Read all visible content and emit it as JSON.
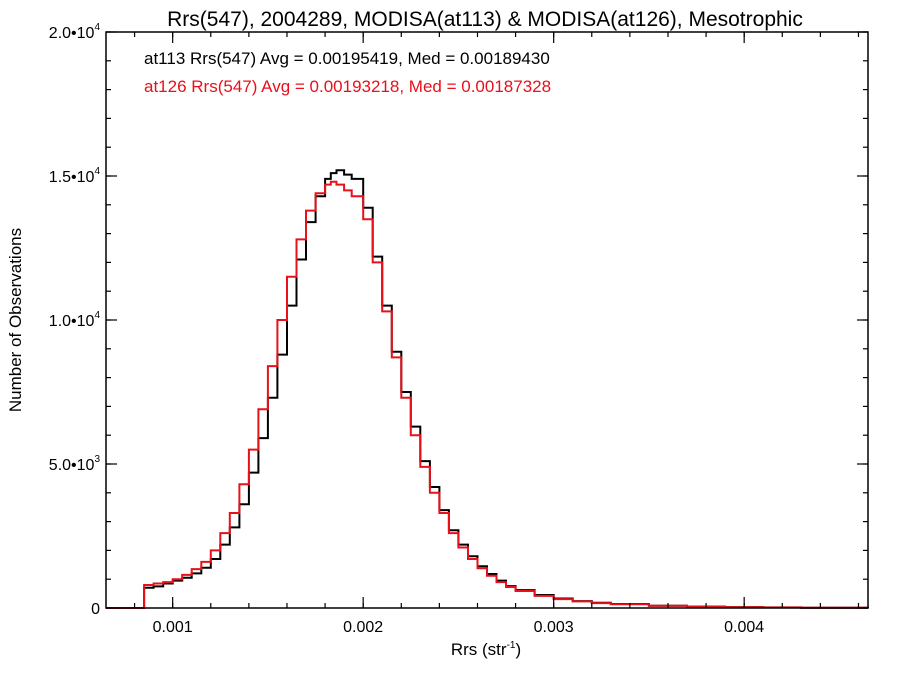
{
  "chart_data": {
    "type": "line",
    "title": "Rrs(547), 2004289, MODISA(at113) & MODISA(at126), Mesotrophic",
    "xlabel": {
      "base": "Rrs (str",
      "sup": "-1",
      "tail": ")"
    },
    "ylabel": "Number of Observations",
    "xlim": [
      0.00065,
      0.00465
    ],
    "ylim": [
      0,
      20000
    ],
    "xticks": [
      {
        "value": 0.001,
        "label": "0.001"
      },
      {
        "value": 0.002,
        "label": "0.002"
      },
      {
        "value": 0.003,
        "label": "0.003"
      },
      {
        "value": 0.004,
        "label": "0.004"
      }
    ],
    "yticks": [
      {
        "value": 0,
        "label": "0",
        "sup": ""
      },
      {
        "value": 5000,
        "label": "5.0•10",
        "sup": "3"
      },
      {
        "value": 10000,
        "label": "1.0•10",
        "sup": "4"
      },
      {
        "value": 15000,
        "label": "1.5•10",
        "sup": "4"
      },
      {
        "value": 20000,
        "label": "2.0•10",
        "sup": "4"
      }
    ],
    "x_minor_step": 0.0002,
    "y_minor_step": 1000,
    "grid": false,
    "legend_position": "top-left",
    "series": [
      {
        "name": "at113",
        "legend_text": "at113 Rrs(547) Avg = 0.00195419, Med = 0.00189430",
        "color": "#000000",
        "x": [
          0.00065,
          0.0008,
          0.00085,
          0.0009,
          0.00095,
          0.001,
          0.00105,
          0.0011,
          0.00115,
          0.0012,
          0.00125,
          0.0013,
          0.00135,
          0.0014,
          0.00145,
          0.0015,
          0.00155,
          0.0016,
          0.00165,
          0.0017,
          0.00175,
          0.0018,
          0.00183,
          0.00186,
          0.0019,
          0.00194,
          0.002,
          0.00205,
          0.0021,
          0.00215,
          0.0022,
          0.00225,
          0.0023,
          0.00235,
          0.0024,
          0.00245,
          0.0025,
          0.00255,
          0.0026,
          0.00265,
          0.0027,
          0.00275,
          0.0028,
          0.0029,
          0.003,
          0.0031,
          0.0032,
          0.0033,
          0.0035,
          0.0037,
          0.0039,
          0.0041,
          0.0043,
          0.00465
        ],
        "y": [
          0,
          0,
          700,
          750,
          850,
          950,
          1050,
          1200,
          1400,
          1700,
          2200,
          2800,
          3600,
          4700,
          5900,
          7300,
          8800,
          10500,
          12100,
          13400,
          14300,
          14900,
          15100,
          15200,
          15050,
          14900,
          13900,
          12200,
          10500,
          8900,
          7500,
          6300,
          5100,
          4200,
          3400,
          2700,
          2200,
          1800,
          1450,
          1180,
          950,
          760,
          620,
          450,
          330,
          240,
          180,
          140,
          80,
          50,
          30,
          20,
          10,
          0
        ]
      },
      {
        "name": "at126",
        "legend_text": "at126 Rrs(547) Avg = 0.00193218, Med = 0.00187328",
        "color": "#e8101a",
        "x": [
          0.00065,
          0.0008,
          0.00085,
          0.0009,
          0.00095,
          0.001,
          0.00105,
          0.0011,
          0.00115,
          0.0012,
          0.00125,
          0.0013,
          0.00135,
          0.0014,
          0.00145,
          0.0015,
          0.00155,
          0.0016,
          0.00165,
          0.0017,
          0.00175,
          0.0018,
          0.00183,
          0.00186,
          0.0019,
          0.00194,
          0.002,
          0.00205,
          0.0021,
          0.00215,
          0.0022,
          0.00225,
          0.0023,
          0.00235,
          0.0024,
          0.00245,
          0.0025,
          0.00255,
          0.0026,
          0.00265,
          0.0027,
          0.00275,
          0.0028,
          0.0029,
          0.003,
          0.0031,
          0.0032,
          0.0033,
          0.0035,
          0.0037,
          0.0039,
          0.0041,
          0.0043,
          0.00465
        ],
        "y": [
          0,
          0,
          800,
          850,
          900,
          1000,
          1150,
          1350,
          1600,
          2000,
          2600,
          3300,
          4300,
          5500,
          6900,
          8400,
          10000,
          11500,
          12800,
          13800,
          14400,
          14700,
          14800,
          14700,
          14500,
          14300,
          13500,
          12000,
          10300,
          8700,
          7300,
          6000,
          4900,
          4000,
          3300,
          2600,
          2100,
          1700,
          1380,
          1120,
          900,
          730,
          590,
          420,
          310,
          230,
          170,
          130,
          75,
          45,
          28,
          18,
          9,
          0
        ]
      }
    ]
  }
}
